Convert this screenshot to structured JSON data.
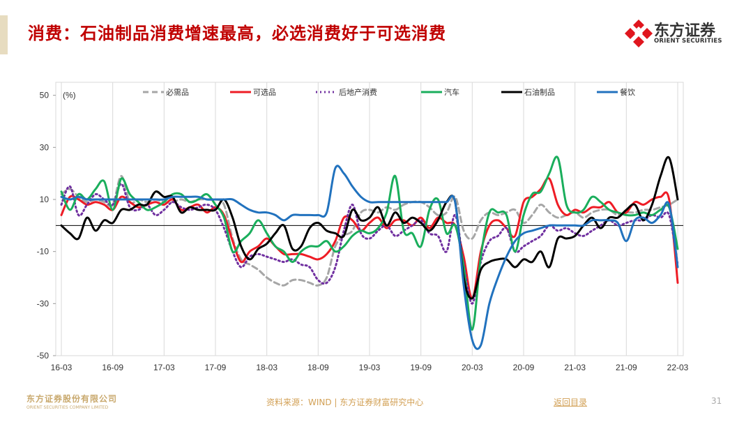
{
  "page": {
    "title": "消费：石油制品消费增速最高，必选消费好于可选消费",
    "logo": {
      "name_cn": "东方证券",
      "name_en": "ORIENT SECURITIES"
    },
    "footer": {
      "company_cn": "东方证券股份有限公司",
      "company_en": "ORIENT SECURITIES COMPANY LIMITED",
      "source": "资料来源：WIND | 东方证券财富研究中心",
      "back_link": "返回目录",
      "page_number": "31"
    }
  },
  "chart_data": {
    "type": "line",
    "ylabel": "(%)",
    "ylim": [
      -50,
      55
    ],
    "yticks": [
      50,
      30,
      10,
      -10,
      -30,
      -50
    ],
    "xticks": [
      "16-03",
      "16-09",
      "17-03",
      "17-09",
      "18-03",
      "18-09",
      "19-03",
      "19-09",
      "20-03",
      "20-09",
      "21-03",
      "21-09",
      "22-03"
    ],
    "grid": "vertical",
    "legend_position": "top",
    "x": [
      "16-03",
      "16-04",
      "16-05",
      "16-06",
      "16-07",
      "16-08",
      "16-09",
      "16-10",
      "16-11",
      "16-12",
      "17-01",
      "17-02",
      "17-03",
      "17-04",
      "17-05",
      "17-06",
      "17-07",
      "17-08",
      "17-09",
      "17-10",
      "17-11",
      "17-12",
      "18-01",
      "18-02",
      "18-03",
      "18-04",
      "18-05",
      "18-06",
      "18-07",
      "18-08",
      "18-09",
      "18-10",
      "18-11",
      "18-12",
      "19-01",
      "19-02",
      "19-03",
      "19-04",
      "19-05",
      "19-06",
      "19-07",
      "19-08",
      "19-09",
      "19-10",
      "19-11",
      "19-12",
      "20-01",
      "20-02",
      "20-03",
      "20-04",
      "20-05",
      "20-06",
      "20-07",
      "20-08",
      "20-09",
      "20-10",
      "20-11",
      "20-12",
      "21-01",
      "21-02",
      "21-03",
      "21-04",
      "21-05",
      "21-06",
      "21-07",
      "21-08",
      "21-09",
      "21-10",
      "21-11",
      "21-12",
      "22-01",
      "22-02",
      "22-03"
    ],
    "series": [
      {
        "name": "必需品",
        "color": "#a6a6a6",
        "dash": "8,5",
        "values": [
          12,
          14,
          11,
          9,
          10,
          9,
          8,
          19,
          9,
          10,
          9,
          10,
          9,
          9,
          10,
          9,
          10,
          10,
          10,
          8,
          -5,
          -13,
          -15,
          -17,
          -20,
          -22,
          -23,
          -21,
          -21,
          -22,
          -23,
          -20,
          -8,
          -4,
          -2,
          5,
          6,
          5,
          7,
          6,
          8,
          9,
          9,
          7,
          4,
          5,
          11,
          -2,
          -5,
          2,
          5,
          4,
          5,
          6,
          1,
          4,
          8,
          5,
          3,
          4,
          5,
          3,
          5,
          6,
          6,
          4,
          5,
          5,
          6,
          6,
          7,
          8,
          10
        ]
      },
      {
        "name": "可选品",
        "color": "#ee1c25",
        "dash": "",
        "values": [
          4,
          11,
          10,
          8,
          9,
          8,
          6,
          11,
          9,
          7,
          8,
          9,
          8,
          10,
          6,
          7,
          8,
          5,
          7,
          4,
          -6,
          -14,
          -10,
          -8,
          -5,
          -8,
          -11,
          -11,
          -11,
          -12,
          -13,
          -11,
          -6,
          3,
          2,
          -2,
          1,
          3,
          -1,
          2,
          2,
          0,
          3,
          -1,
          3,
          1,
          0,
          -12,
          -28,
          -10,
          0,
          2,
          -1,
          -4,
          9,
          11,
          14,
          18,
          8,
          4,
          6,
          5,
          7,
          7,
          9,
          5,
          5,
          9,
          8,
          10,
          11,
          10,
          -22
        ]
      },
      {
        "name": "后地产消费",
        "color": "#7030a0",
        "dash": "2,4",
        "values": [
          8,
          15,
          4,
          8,
          12,
          10,
          8,
          16,
          7,
          6,
          8,
          4,
          6,
          9,
          7,
          6,
          7,
          8,
          6,
          -1,
          -10,
          -16,
          -12,
          -11,
          -12,
          -13,
          -14,
          -13,
          -15,
          -16,
          -21,
          -22,
          -16,
          -2,
          8,
          -3,
          -5,
          -2,
          0,
          -4,
          -2,
          0,
          2,
          -3,
          -4,
          -10,
          4,
          -15,
          -30,
          -14,
          -6,
          -4,
          -1,
          -10,
          -8,
          -6,
          -4,
          0,
          -2,
          -1,
          -3,
          -4,
          -2,
          0,
          2,
          0,
          1,
          2,
          2,
          4,
          3,
          4,
          -15
        ]
      },
      {
        "name": "汽车",
        "color": "#1aae5c",
        "dash": "",
        "values": [
          13,
          6,
          12,
          10,
          14,
          17,
          6,
          18,
          12,
          9,
          6,
          7,
          9,
          12,
          12,
          9,
          10,
          12,
          8,
          3,
          -10,
          -6,
          -3,
          2,
          -3,
          -8,
          -10,
          -14,
          -10,
          -8,
          -8,
          -6,
          -10,
          -8,
          -4,
          -2,
          -3,
          -1,
          5,
          19,
          -2,
          -3,
          -8,
          6,
          10,
          -3,
          0,
          -16,
          -40,
          -12,
          5,
          5,
          4,
          -10,
          4,
          12,
          13,
          20,
          26,
          8,
          5,
          6,
          11,
          9,
          6,
          5,
          4,
          4,
          5,
          4,
          6,
          7,
          -9
        ]
      },
      {
        "name": "石油制品",
        "color": "#000000",
        "dash": "",
        "values": [
          0,
          -3,
          -5,
          3,
          -2,
          2,
          1,
          6,
          6,
          8,
          8,
          13,
          11,
          11,
          5,
          7,
          6,
          6,
          6,
          10,
          3,
          -8,
          -13,
          -9,
          -7,
          -3,
          0,
          -9,
          -8,
          -1,
          1,
          -2,
          -3,
          -4,
          6,
          2,
          3,
          7,
          0,
          5,
          1,
          3,
          1,
          -2,
          2,
          9,
          9,
          -20,
          -28,
          -17,
          -14,
          -13,
          -13,
          -16,
          -13,
          -14,
          -10,
          -16,
          -5,
          -5,
          -4,
          0,
          3,
          -1,
          3,
          3,
          6,
          8,
          2,
          8,
          19,
          26,
          10
        ]
      },
      {
        "name": "餐饮",
        "color": "#2172be",
        "dash": "",
        "values": [
          11,
          10,
          11,
          10,
          10,
          10,
          10,
          10,
          10,
          10,
          10,
          10,
          10,
          11,
          11,
          11,
          11,
          10,
          10,
          10,
          10,
          8,
          6,
          5,
          5,
          4,
          2,
          4,
          4,
          4,
          4,
          5,
          22,
          20,
          15,
          11,
          9,
          9,
          9,
          9,
          9,
          9,
          9,
          9,
          9,
          9,
          9,
          -23,
          -44,
          -46,
          -30,
          -20,
          -12,
          -6,
          -3,
          -2,
          -1,
          0,
          0,
          0,
          0,
          0,
          2,
          2,
          2,
          1,
          -6,
          2,
          3,
          1,
          4,
          8,
          -16
        ]
      }
    ]
  }
}
